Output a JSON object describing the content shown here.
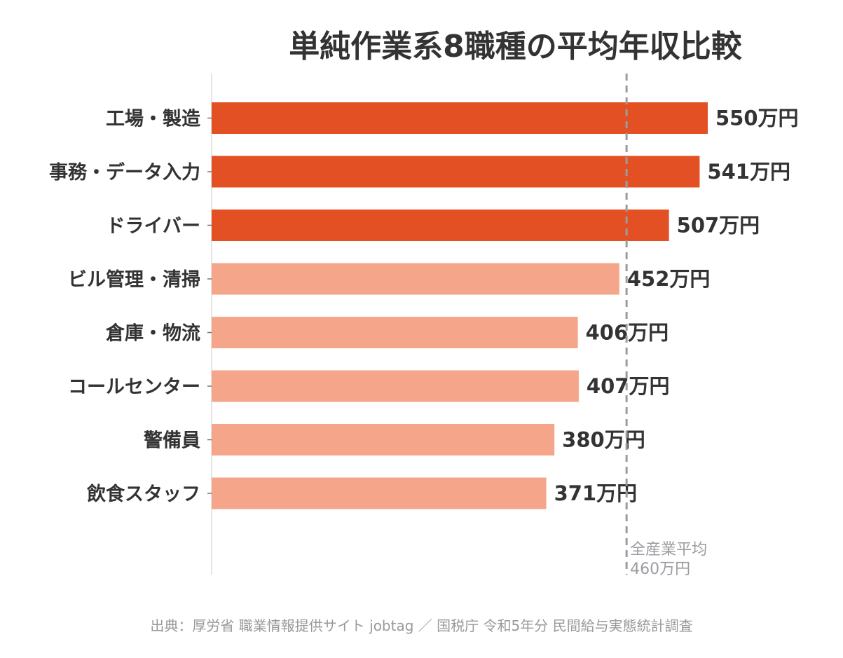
{
  "chart_data": {
    "type": "bar",
    "orientation": "horizontal",
    "title": "単純作業系8職種の平均年収比較",
    "categories": [
      "工場・製造",
      "事務・データ入力",
      "ドライバー",
      "ビル管理・清掃",
      "倉庫・物流",
      "コールセンター",
      "警備員",
      "飲食スタッフ"
    ],
    "values": [
      550,
      541,
      507,
      452,
      406,
      407,
      380,
      371
    ],
    "value_labels": [
      "550万円",
      "541万円",
      "507万円",
      "452万円",
      "406万円",
      "407万円",
      "380万円",
      "371万円"
    ],
    "highlight": [
      true,
      true,
      true,
      false,
      false,
      false,
      false,
      false
    ],
    "unit": "万円",
    "xlim": [
      0,
      600
    ],
    "grid": false,
    "reference_line": {
      "value": 460,
      "label_line1": "全産業平均",
      "label_line2": "460万円",
      "style": "dashed"
    },
    "colors": {
      "highlight": "#e35023",
      "normal": "#f5a68a",
      "reference": "#9a9ca0",
      "axis": "#dddddd"
    }
  },
  "source": "出典：厚労省 職業情報提供サイト jobtag ／ 国税庁 令和5年分 民間給与実態統計調査"
}
